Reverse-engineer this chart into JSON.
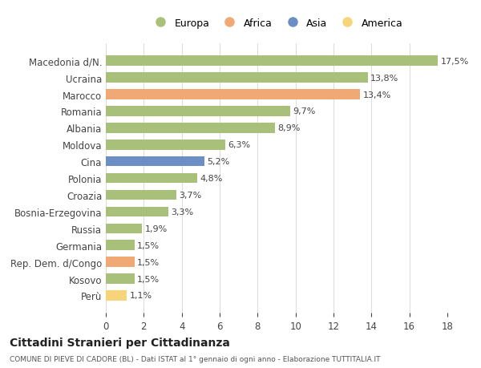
{
  "categories": [
    "Macedonia d/N.",
    "Ucraina",
    "Marocco",
    "Romania",
    "Albania",
    "Moldova",
    "Cina",
    "Polonia",
    "Croazia",
    "Bosnia-Erzegovina",
    "Russia",
    "Germania",
    "Rep. Dem. d/Congo",
    "Kosovo",
    "Perù"
  ],
  "values": [
    17.5,
    13.8,
    13.4,
    9.7,
    8.9,
    6.3,
    5.2,
    4.8,
    3.7,
    3.3,
    1.9,
    1.5,
    1.5,
    1.5,
    1.1
  ],
  "labels": [
    "17,5%",
    "13,8%",
    "13,4%",
    "9,7%",
    "8,9%",
    "6,3%",
    "5,2%",
    "4,8%",
    "3,7%",
    "3,3%",
    "1,9%",
    "1,5%",
    "1,5%",
    "1,5%",
    "1,1%"
  ],
  "colors": [
    "#a8c07a",
    "#a8c07a",
    "#f0a875",
    "#a8c07a",
    "#a8c07a",
    "#a8c07a",
    "#6b8fc4",
    "#a8c07a",
    "#a8c07a",
    "#a8c07a",
    "#a8c07a",
    "#a8c07a",
    "#f0a875",
    "#a8c07a",
    "#f5d47a"
  ],
  "legend": [
    {
      "label": "Europa",
      "color": "#a8c07a"
    },
    {
      "label": "Africa",
      "color": "#f0a875"
    },
    {
      "label": "Asia",
      "color": "#6b8fc4"
    },
    {
      "label": "America",
      "color": "#f5d47a"
    }
  ],
  "title": "Cittadini Stranieri per Cittadinanza",
  "subtitle": "COMUNE DI PIEVE DI CADORE (BL) - Dati ISTAT al 1° gennaio di ogni anno - Elaborazione TUTTITALIA.IT",
  "xlim": [
    0,
    18
  ],
  "xticks": [
    0,
    2,
    4,
    6,
    8,
    10,
    12,
    14,
    16,
    18
  ],
  "background_color": "#ffffff",
  "grid_color": "#dddddd"
}
